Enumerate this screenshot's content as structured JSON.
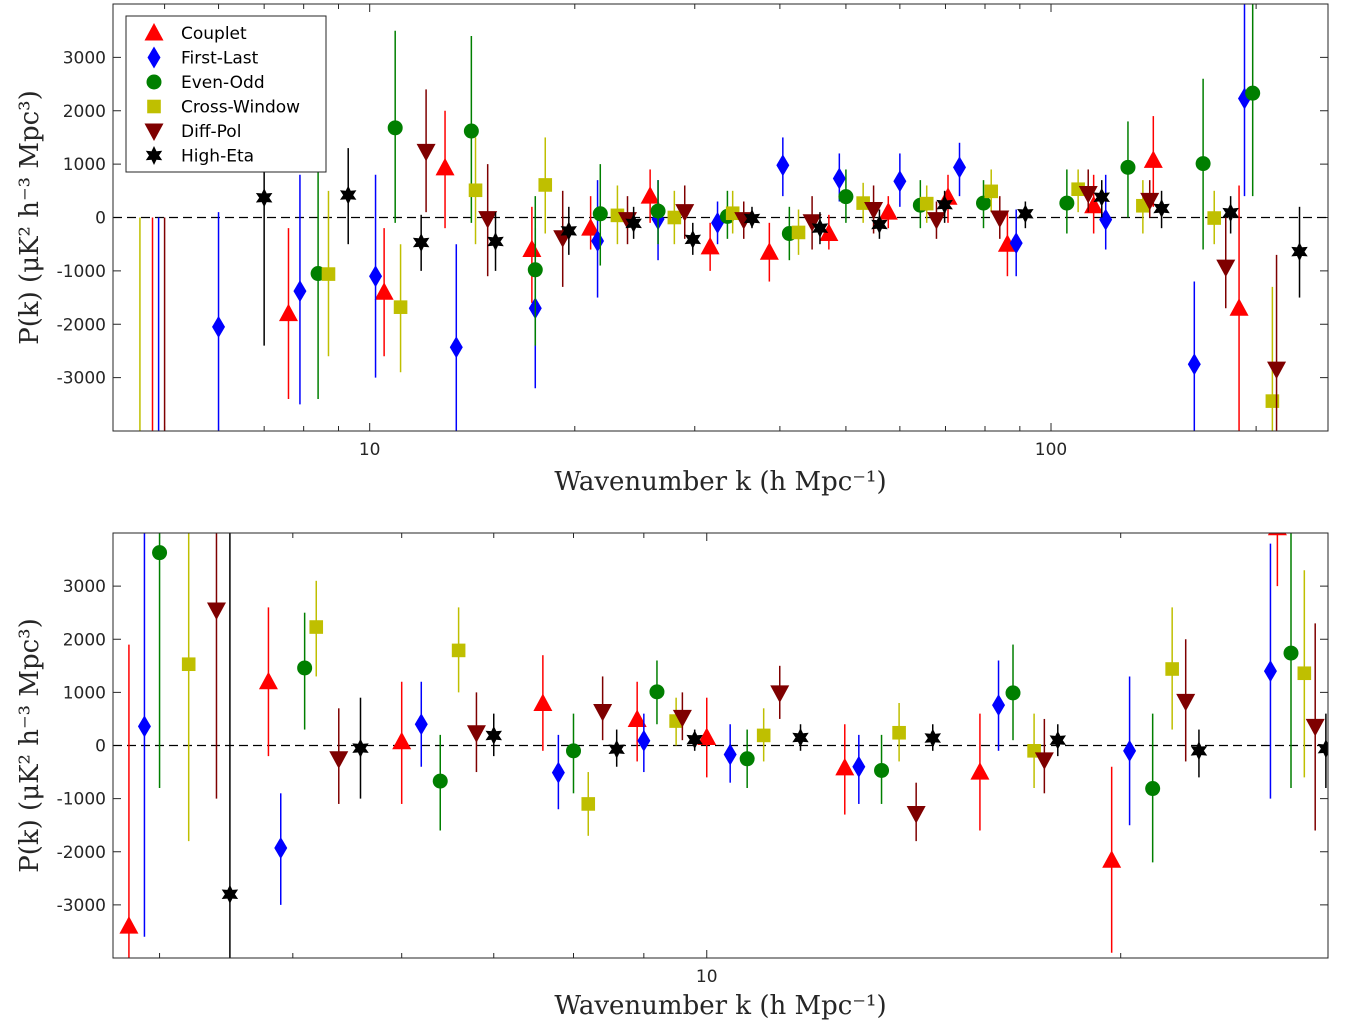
{
  "chart_data": [
    {
      "type": "scatter",
      "xscale": "log",
      "xlim": [
        4.2,
        255
      ],
      "ylim": [
        -4000,
        4000
      ],
      "xticks": [
        10,
        100
      ],
      "xtick_labels": [
        "10",
        "100"
      ],
      "yticks": [
        -3000,
        -2000,
        -1000,
        0,
        1000,
        2000,
        3000
      ],
      "ytick_labels": [
        "-3000",
        "-2000",
        "-1000",
        "0",
        "1000",
        "2000",
        "3000"
      ],
      "xlabel": "Wavenumber k (h Mpc⁻¹)",
      "ylabel": "P(k) (μK² h⁻³ Mpc³)",
      "zero_line": true,
      "legend": {
        "placement": "top-left",
        "entries": [
          "Couplet",
          "First-Last",
          "Even-Odd",
          "Cross-Window",
          "Diff-Pol",
          "High-Eta"
        ]
      },
      "series": [
        {
          "name": "Couplet",
          "color": "#ff0000",
          "marker": "triangle-up",
          "points": [
            [
              4.8,
              -4200,
              -6000,
              0
            ],
            [
              7.6,
              -1800,
              -3400,
              -200
            ],
            [
              10.5,
              -1400,
              -2600,
              -200
            ],
            [
              12.9,
              930,
              -200,
              2000
            ],
            [
              17.3,
              -600,
              -1600,
              200
            ],
            [
              21.1,
              -200,
              -600,
              400
            ],
            [
              25.8,
              400,
              -100,
              900
            ],
            [
              31.6,
              -550,
              -1000,
              -100
            ],
            [
              38.6,
              -650,
              -1200,
              -100
            ],
            [
              47.2,
              -300,
              -600,
              50
            ],
            [
              57.7,
              100,
              -200,
              400
            ],
            [
              70.6,
              380,
              -100,
              800
            ],
            [
              86.3,
              -500,
              -1100,
              100
            ],
            [
              115.5,
              220,
              -300,
              800
            ],
            [
              141.3,
              1070,
              200,
              1900
            ],
            [
              188.8,
              -1700,
              -4000,
              600
            ]
          ]
        },
        {
          "name": "First-Last",
          "color": "#0000ff",
          "marker": "diamond",
          "points": [
            [
              4.9,
              -4200,
              -6000,
              0
            ],
            [
              6.0,
              -2050,
              -4200,
              100
            ],
            [
              7.9,
              -1380,
              -3500,
              800
            ],
            [
              10.2,
              -1100,
              -3000,
              800
            ],
            [
              13.4,
              -2430,
              -4200,
              -500
            ],
            [
              17.5,
              -1700,
              -3200,
              -200
            ],
            [
              21.6,
              -440,
              -1500,
              700
            ],
            [
              26.5,
              -30,
              -800,
              700
            ],
            [
              32.4,
              -100,
              -500,
              300
            ],
            [
              40.4,
              980,
              400,
              1500
            ],
            [
              48.9,
              730,
              300,
              1200
            ],
            [
              60.0,
              680,
              200,
              1200
            ],
            [
              73.4,
              940,
              400,
              1400
            ],
            [
              88.9,
              -480,
              -1100,
              150
            ],
            [
              120.3,
              -40,
              -600,
              800
            ],
            [
              162.3,
              -2750,
              -4200,
              -1200
            ],
            [
              192.3,
              2230,
              400,
              4100
            ]
          ]
        },
        {
          "name": "Even-Odd",
          "color": "#007f00",
          "marker": "circle",
          "points": [
            [
              8.4,
              -1050,
              -3400,
              1300
            ],
            [
              10.9,
              1680,
              -100,
              3500
            ],
            [
              14.1,
              1620,
              -100,
              3400
            ],
            [
              17.5,
              -980,
              -2400,
              400
            ],
            [
              21.8,
              70,
              -900,
              1000
            ],
            [
              26.5,
              120,
              -500,
              700
            ],
            [
              33.5,
              20,
              -400,
              500
            ],
            [
              41.3,
              -300,
              -800,
              200
            ],
            [
              50.0,
              390,
              -100,
              900
            ],
            [
              64.3,
              230,
              -200,
              700
            ],
            [
              79.6,
              270,
              -200,
              700
            ],
            [
              105.5,
              270,
              -300,
              900
            ],
            [
              129.7,
              940,
              0,
              1800
            ],
            [
              167.2,
              1010,
              -600,
              2600
            ],
            [
              197.7,
              2330,
              400,
              4100
            ]
          ]
        },
        {
          "name": "Cross-Window",
          "color": "#bfbf00",
          "marker": "square",
          "points": [
            [
              4.6,
              -4200,
              -6000,
              0
            ],
            [
              8.7,
              -1060,
              -2600,
              500
            ],
            [
              11.1,
              -1680,
              -2900,
              -500
            ],
            [
              14.3,
              510,
              -500,
              1500
            ],
            [
              18.1,
              610,
              -300,
              1500
            ],
            [
              23.1,
              40,
              -500,
              600
            ],
            [
              28.0,
              0,
              -500,
              500
            ],
            [
              34.1,
              80,
              -300,
              500
            ],
            [
              42.6,
              -280,
              -700,
              150
            ],
            [
              53.0,
              270,
              -100,
              650
            ],
            [
              65.7,
              260,
              -100,
              600
            ],
            [
              81.7,
              490,
              100,
              900
            ],
            [
              109.6,
              530,
              100,
              900
            ],
            [
              136.4,
              220,
              -300,
              700
            ],
            [
              173.6,
              -10,
              -500,
              500
            ],
            [
              211.3,
              -3440,
              -4200,
              -1300
            ]
          ]
        },
        {
          "name": "Diff-Pol",
          "color": "#7f0000",
          "marker": "triangle-down",
          "points": [
            [
              5.0,
              -4200,
              -6000,
              0
            ],
            [
              12.1,
              1240,
              100,
              2400
            ],
            [
              14.9,
              -20,
              -1100,
              1000
            ],
            [
              19.2,
              -380,
              -1300,
              500
            ],
            [
              23.9,
              -40,
              -500,
              400
            ],
            [
              29.0,
              110,
              -400,
              600
            ],
            [
              35.4,
              -40,
              -400,
              300
            ],
            [
              44.6,
              -80,
              -600,
              400
            ],
            [
              54.9,
              150,
              -300,
              600
            ],
            [
              67.9,
              -40,
              -400,
              300
            ],
            [
              84.1,
              -10,
              -400,
              400
            ],
            [
              113.4,
              450,
              100,
              900
            ],
            [
              139.6,
              320,
              0,
              700
            ],
            [
              180.5,
              -930,
              -1700,
              0
            ],
            [
              214.3,
              -2840,
              -4200,
              -700
            ]
          ]
        },
        {
          "name": "High-Eta",
          "color": "#000000",
          "marker": "star",
          "points": [
            [
              7.0,
              370,
              -2400,
              3100
            ],
            [
              9.3,
              420,
              -500,
              1300
            ],
            [
              11.9,
              -470,
              -1000,
              50
            ],
            [
              15.3,
              -450,
              -1000,
              100
            ],
            [
              19.6,
              -250,
              -700,
              200
            ],
            [
              24.4,
              -110,
              -400,
              200
            ],
            [
              29.8,
              -410,
              -700,
              -100
            ],
            [
              36.4,
              -20,
              -200,
              200
            ],
            [
              45.8,
              -200,
              -500,
              100
            ],
            [
              56.0,
              -130,
              -400,
              150
            ],
            [
              69.8,
              240,
              -100,
              500
            ],
            [
              91.7,
              70,
              -200,
              300
            ],
            [
              118.7,
              380,
              0,
              700
            ],
            [
              145.3,
              170,
              -200,
              500
            ],
            [
              183.5,
              90,
              -300,
              400
            ],
            [
              231.6,
              -640,
              -1500,
              200
            ]
          ]
        }
      ]
    },
    {
      "type": "scatter",
      "xscale": "log",
      "xlim": [
        3.7,
        28.3
      ],
      "ylim": [
        -4000,
        4000
      ],
      "xticks": [
        10
      ],
      "xtick_labels": [
        "10"
      ],
      "yticks": [
        -3000,
        -2000,
        -1000,
        0,
        1000,
        2000,
        3000
      ],
      "ytick_labels": [
        "-3000",
        "-2000",
        "-1000",
        "0",
        "1000",
        "2000",
        "3000"
      ],
      "xlabel": "Wavenumber k (h Mpc⁻¹)",
      "ylabel": "P(k) (μK² h⁻³ Mpc³)",
      "zero_line": true,
      "series": [
        {
          "name": "Couplet",
          "color": "#ff0000",
          "marker": "triangle-up",
          "points": [
            [
              3.8,
              -3400,
              -4200,
              1900
            ],
            [
              4.8,
              1200,
              -200,
              2600
            ],
            [
              6.0,
              70,
              -1100,
              1200
            ],
            [
              7.6,
              790,
              -100,
              1700
            ],
            [
              8.9,
              490,
              -300,
              1200
            ],
            [
              10.0,
              150,
              -600,
              900
            ],
            [
              12.6,
              -420,
              -1300,
              400
            ],
            [
              15.8,
              -500,
              -1600,
              600
            ],
            [
              19.7,
              -2160,
              -3900,
              -400
            ],
            [
              26.0,
              4100,
              3000,
              5000
            ]
          ]
        },
        {
          "name": "First-Last",
          "color": "#0000ff",
          "marker": "diamond",
          "points": [
            [
              3.9,
              360,
              -3600,
              4200
            ],
            [
              4.9,
              -1930,
              -3000,
              -900
            ],
            [
              6.2,
              400,
              -400,
              1200
            ],
            [
              7.8,
              -510,
              -1200,
              200
            ],
            [
              9.0,
              90,
              -500,
              600
            ],
            [
              10.4,
              -170,
              -700,
              400
            ],
            [
              12.9,
              -400,
              -1100,
              200
            ],
            [
              16.3,
              760,
              -100,
              1600
            ],
            [
              20.3,
              -100,
              -1500,
              1300
            ],
            [
              25.7,
              1400,
              -1000,
              3800
            ]
          ]
        },
        {
          "name": "Even-Odd",
          "color": "#007f00",
          "marker": "circle",
          "points": [
            [
              4.0,
              3630,
              -800,
              4200
            ],
            [
              5.1,
              1460,
              300,
              2500
            ],
            [
              6.4,
              -670,
              -1600,
              200
            ],
            [
              8.0,
              -100,
              -900,
              600
            ],
            [
              9.2,
              1010,
              400,
              1600
            ],
            [
              10.7,
              -250,
              -800,
              300
            ],
            [
              13.4,
              -470,
              -1100,
              200
            ],
            [
              16.7,
              990,
              100,
              1900
            ],
            [
              21.1,
              -810,
              -2200,
              600
            ],
            [
              26.6,
              1740,
              -800,
              4200
            ]
          ]
        },
        {
          "name": "Cross-Window",
          "color": "#bfbf00",
          "marker": "square",
          "points": [
            [
              4.2,
              1530,
              -1800,
              4200
            ],
            [
              5.2,
              2230,
              1300,
              3100
            ],
            [
              6.6,
              1790,
              1000,
              2600
            ],
            [
              8.2,
              -1100,
              -1700,
              -500
            ],
            [
              9.5,
              460,
              0,
              900
            ],
            [
              11.0,
              190,
              -300,
              700
            ],
            [
              13.8,
              240,
              -300,
              800
            ],
            [
              17.3,
              -100,
              -800,
              600
            ],
            [
              21.8,
              1440,
              300,
              2600
            ],
            [
              27.2,
              1360,
              -600,
              3300
            ]
          ]
        },
        {
          "name": "Diff-Pol",
          "color": "#7f0000",
          "marker": "triangle-down",
          "points": [
            [
              4.4,
              2550,
              -1000,
              4200
            ],
            [
              5.4,
              -250,
              -1100,
              700
            ],
            [
              6.8,
              240,
              -500,
              1000
            ],
            [
              8.4,
              640,
              100,
              1300
            ],
            [
              9.6,
              530,
              100,
              1000
            ],
            [
              11.3,
              990,
              500,
              1500
            ],
            [
              14.2,
              -1280,
              -1800,
              -700
            ],
            [
              17.6,
              -270,
              -900,
              500
            ],
            [
              22.3,
              830,
              -300,
              2000
            ],
            [
              27.7,
              360,
              -1600,
              2300
            ]
          ]
        },
        {
          "name": "High-Eta",
          "color": "#000000",
          "marker": "star",
          "points": [
            [
              4.5,
              -2800,
              -4200,
              4200
            ],
            [
              5.6,
              -50,
              -1000,
              900
            ],
            [
              7.0,
              190,
              -200,
              600
            ],
            [
              8.6,
              -70,
              -400,
              300
            ],
            [
              9.8,
              110,
              -100,
              300
            ],
            [
              11.7,
              150,
              -100,
              400
            ],
            [
              14.6,
              140,
              -100,
              400
            ],
            [
              18.0,
              100,
              -200,
              400
            ],
            [
              22.8,
              -100,
              -600,
              300
            ],
            [
              28.2,
              -60,
              -800,
              600
            ]
          ]
        }
      ]
    }
  ]
}
